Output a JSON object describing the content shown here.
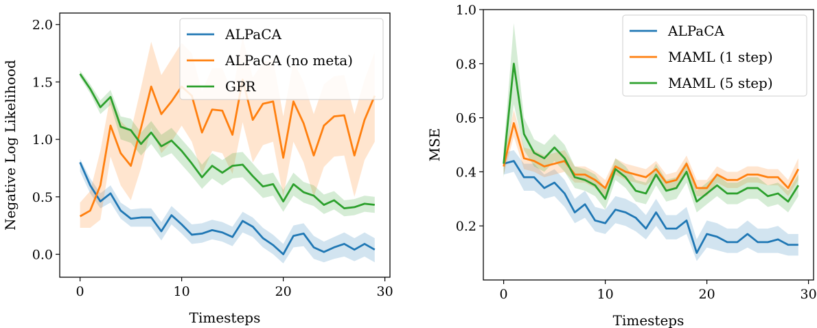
{
  "chart_data": [
    {
      "type": "line",
      "xlabel": "Timesteps",
      "ylabel": "Negative Log Likelihood",
      "xlim": [
        -2,
        30.5
      ],
      "ylim": [
        -0.2,
        2.1
      ],
      "xticks": [
        0,
        10,
        20,
        30
      ],
      "yticks": [
        0.0,
        0.5,
        1.0,
        1.5,
        2.0
      ],
      "xtick_labels": [
        "0",
        "10",
        "20",
        "30"
      ],
      "ytick_labels": [
        "0.0",
        "0.5",
        "1.0",
        "1.5",
        "2.0"
      ],
      "legend_position": "top-right",
      "grid": false,
      "series": [
        {
          "name": "ALPaCA",
          "color": "#1f77b4",
          "x": [
            0,
            1,
            2,
            3,
            4,
            5,
            6,
            7,
            8,
            9,
            10,
            11,
            12,
            13,
            14,
            15,
            16,
            17,
            18,
            19,
            20,
            21,
            22,
            23,
            24,
            25,
            26,
            27,
            28,
            29
          ],
          "values": [
            0.8,
            0.6,
            0.46,
            0.53,
            0.38,
            0.31,
            0.32,
            0.32,
            0.2,
            0.34,
            0.26,
            0.17,
            0.18,
            0.21,
            0.19,
            0.15,
            0.29,
            0.24,
            0.14,
            0.08,
            0.0,
            0.16,
            0.18,
            0.06,
            0.02,
            0.06,
            0.09,
            0.04,
            0.09,
            0.04
          ],
          "lower": [
            0.72,
            0.53,
            0.4,
            0.45,
            0.31,
            0.24,
            0.24,
            0.24,
            0.12,
            0.26,
            0.18,
            0.09,
            0.1,
            0.13,
            0.11,
            0.07,
            0.19,
            0.15,
            0.06,
            0.0,
            -0.08,
            0.06,
            0.07,
            -0.04,
            -0.07,
            -0.04,
            -0.02,
            -0.06,
            -0.02,
            -0.07
          ],
          "upper": [
            0.83,
            0.66,
            0.53,
            0.6,
            0.45,
            0.39,
            0.4,
            0.4,
            0.28,
            0.42,
            0.34,
            0.26,
            0.27,
            0.3,
            0.28,
            0.24,
            0.37,
            0.32,
            0.23,
            0.17,
            0.09,
            0.25,
            0.27,
            0.16,
            0.11,
            0.15,
            0.19,
            0.14,
            0.19,
            0.14
          ]
        },
        {
          "name": "ALPaCA (no meta)",
          "color": "#ff7f0e",
          "x": [
            0,
            1,
            2,
            3,
            4,
            5,
            6,
            7,
            8,
            9,
            10,
            11,
            12,
            13,
            14,
            15,
            16,
            17,
            18,
            19,
            20,
            21,
            22,
            23,
            24,
            25,
            26,
            27,
            28,
            29
          ],
          "values": [
            0.33,
            0.38,
            0.6,
            1.12,
            0.88,
            0.77,
            1.1,
            1.46,
            1.22,
            1.33,
            1.46,
            1.38,
            1.06,
            1.26,
            1.25,
            1.04,
            1.52,
            1.17,
            1.31,
            1.33,
            0.84,
            1.33,
            1.14,
            0.86,
            1.12,
            1.2,
            1.21,
            0.86,
            1.17,
            1.38
          ],
          "lower": [
            0.23,
            0.23,
            0.3,
            0.85,
            0.6,
            0.47,
            0.75,
            1.1,
            0.88,
            0.98,
            1.12,
            0.98,
            0.7,
            0.9,
            0.88,
            0.7,
            1.15,
            0.8,
            0.95,
            0.98,
            0.5,
            0.98,
            0.8,
            0.5,
            0.76,
            0.85,
            0.86,
            0.5,
            0.82,
            0.98
          ],
          "upper": [
            0.45,
            0.55,
            0.9,
            1.38,
            1.16,
            1.07,
            1.45,
            1.85,
            1.56,
            1.7,
            1.84,
            1.75,
            1.42,
            1.62,
            1.62,
            1.4,
            1.89,
            1.54,
            1.67,
            1.7,
            1.2,
            1.68,
            1.5,
            1.22,
            1.48,
            1.55,
            1.56,
            1.22,
            1.52,
            1.76
          ]
        },
        {
          "name": "GPR",
          "color": "#2ca02c",
          "x": [
            0,
            1,
            2,
            3,
            4,
            5,
            6,
            7,
            8,
            9,
            10,
            11,
            12,
            13,
            14,
            15,
            16,
            17,
            18,
            19,
            20,
            21,
            22,
            23,
            24,
            25,
            26,
            27,
            28,
            29
          ],
          "values": [
            1.57,
            1.44,
            1.28,
            1.37,
            1.11,
            1.08,
            0.96,
            1.06,
            0.94,
            0.99,
            0.9,
            0.79,
            0.67,
            0.77,
            0.71,
            0.77,
            0.78,
            0.68,
            0.59,
            0.61,
            0.46,
            0.61,
            0.54,
            0.51,
            0.43,
            0.47,
            0.4,
            0.41,
            0.44,
            0.43
          ],
          "lower": [
            1.54,
            1.4,
            1.22,
            1.3,
            1.0,
            0.97,
            0.86,
            0.96,
            0.84,
            0.88,
            0.78,
            0.68,
            0.57,
            0.66,
            0.6,
            0.66,
            0.67,
            0.58,
            0.49,
            0.51,
            0.37,
            0.51,
            0.45,
            0.42,
            0.35,
            0.39,
            0.33,
            0.34,
            0.37,
            0.36
          ],
          "upper": [
            1.6,
            1.48,
            1.34,
            1.43,
            1.2,
            1.18,
            1.06,
            1.16,
            1.04,
            1.1,
            1.0,
            0.9,
            0.78,
            0.88,
            0.82,
            0.88,
            0.89,
            0.79,
            0.69,
            0.71,
            0.56,
            0.71,
            0.63,
            0.6,
            0.52,
            0.55,
            0.47,
            0.48,
            0.51,
            0.5
          ]
        }
      ]
    },
    {
      "type": "line",
      "xlabel": "Timesteps",
      "ylabel": "MSE",
      "xlim": [
        -2,
        30.5
      ],
      "ylim": [
        0.0,
        1.0
      ],
      "xticks": [
        0,
        10,
        20,
        30
      ],
      "yticks": [
        0.2,
        0.4,
        0.6,
        0.8,
        1.0
      ],
      "xtick_labels": [
        "0",
        "10",
        "20",
        "30"
      ],
      "ytick_labels": [
        "0.2",
        "0.4",
        "0.6",
        "0.8",
        "1.0"
      ],
      "legend_position": "top-right",
      "grid": false,
      "series": [
        {
          "name": "ALPaCA",
          "color": "#1f77b4",
          "x": [
            0,
            1,
            2,
            3,
            4,
            5,
            6,
            7,
            8,
            9,
            10,
            11,
            12,
            13,
            14,
            15,
            16,
            17,
            18,
            19,
            20,
            21,
            22,
            23,
            24,
            25,
            26,
            27,
            28,
            29
          ],
          "values": [
            0.43,
            0.44,
            0.38,
            0.38,
            0.34,
            0.36,
            0.32,
            0.25,
            0.28,
            0.22,
            0.21,
            0.26,
            0.25,
            0.23,
            0.19,
            0.25,
            0.19,
            0.19,
            0.22,
            0.1,
            0.17,
            0.16,
            0.14,
            0.14,
            0.17,
            0.14,
            0.14,
            0.15,
            0.13,
            0.13
          ],
          "lower": [
            0.39,
            0.4,
            0.33,
            0.33,
            0.3,
            0.31,
            0.27,
            0.21,
            0.23,
            0.18,
            0.17,
            0.21,
            0.2,
            0.18,
            0.15,
            0.2,
            0.15,
            0.15,
            0.17,
            0.07,
            0.12,
            0.11,
            0.1,
            0.1,
            0.12,
            0.1,
            0.1,
            0.1,
            0.09,
            0.09
          ],
          "upper": [
            0.47,
            0.48,
            0.43,
            0.43,
            0.39,
            0.41,
            0.37,
            0.3,
            0.33,
            0.27,
            0.26,
            0.31,
            0.3,
            0.28,
            0.24,
            0.3,
            0.24,
            0.24,
            0.27,
            0.15,
            0.22,
            0.21,
            0.19,
            0.19,
            0.22,
            0.19,
            0.19,
            0.2,
            0.17,
            0.17
          ]
        },
        {
          "name": "MAML (1 step)",
          "color": "#ff7f0e",
          "x": [
            0,
            1,
            2,
            3,
            4,
            5,
            6,
            7,
            8,
            9,
            10,
            11,
            12,
            13,
            14,
            15,
            16,
            17,
            18,
            19,
            20,
            21,
            22,
            23,
            24,
            25,
            26,
            27,
            28,
            29
          ],
          "values": [
            0.42,
            0.58,
            0.45,
            0.44,
            0.42,
            0.43,
            0.44,
            0.39,
            0.39,
            0.37,
            0.34,
            0.42,
            0.4,
            0.39,
            0.38,
            0.41,
            0.36,
            0.37,
            0.43,
            0.34,
            0.34,
            0.39,
            0.37,
            0.37,
            0.39,
            0.39,
            0.38,
            0.38,
            0.34,
            0.41
          ],
          "lower": [
            0.39,
            0.53,
            0.41,
            0.4,
            0.38,
            0.39,
            0.4,
            0.36,
            0.36,
            0.34,
            0.31,
            0.39,
            0.37,
            0.36,
            0.35,
            0.38,
            0.33,
            0.34,
            0.4,
            0.31,
            0.31,
            0.36,
            0.34,
            0.34,
            0.36,
            0.36,
            0.35,
            0.35,
            0.31,
            0.37
          ],
          "upper": [
            0.45,
            0.63,
            0.49,
            0.48,
            0.46,
            0.47,
            0.48,
            0.42,
            0.42,
            0.4,
            0.37,
            0.45,
            0.43,
            0.42,
            0.41,
            0.44,
            0.39,
            0.4,
            0.46,
            0.37,
            0.37,
            0.42,
            0.4,
            0.4,
            0.42,
            0.42,
            0.41,
            0.41,
            0.37,
            0.45
          ]
        },
        {
          "name": "MAML (5 step)",
          "color": "#2ca02c",
          "x": [
            0,
            1,
            2,
            3,
            4,
            5,
            6,
            7,
            8,
            9,
            10,
            11,
            12,
            13,
            14,
            15,
            16,
            17,
            18,
            19,
            20,
            21,
            22,
            23,
            24,
            25,
            26,
            27,
            28,
            29
          ],
          "values": [
            0.43,
            0.8,
            0.54,
            0.47,
            0.45,
            0.49,
            0.45,
            0.38,
            0.37,
            0.35,
            0.3,
            0.41,
            0.38,
            0.33,
            0.32,
            0.39,
            0.33,
            0.34,
            0.4,
            0.29,
            0.32,
            0.35,
            0.32,
            0.32,
            0.34,
            0.34,
            0.31,
            0.32,
            0.29,
            0.35
          ],
          "lower": [
            0.38,
            0.65,
            0.48,
            0.42,
            0.4,
            0.44,
            0.4,
            0.34,
            0.33,
            0.31,
            0.26,
            0.37,
            0.34,
            0.29,
            0.28,
            0.35,
            0.29,
            0.3,
            0.36,
            0.25,
            0.28,
            0.31,
            0.28,
            0.28,
            0.3,
            0.3,
            0.27,
            0.28,
            0.25,
            0.31
          ],
          "upper": [
            0.48,
            0.95,
            0.6,
            0.52,
            0.5,
            0.54,
            0.5,
            0.42,
            0.41,
            0.39,
            0.34,
            0.45,
            0.42,
            0.37,
            0.36,
            0.43,
            0.37,
            0.38,
            0.44,
            0.33,
            0.36,
            0.39,
            0.36,
            0.36,
            0.38,
            0.38,
            0.35,
            0.36,
            0.33,
            0.39
          ]
        }
      ]
    }
  ]
}
